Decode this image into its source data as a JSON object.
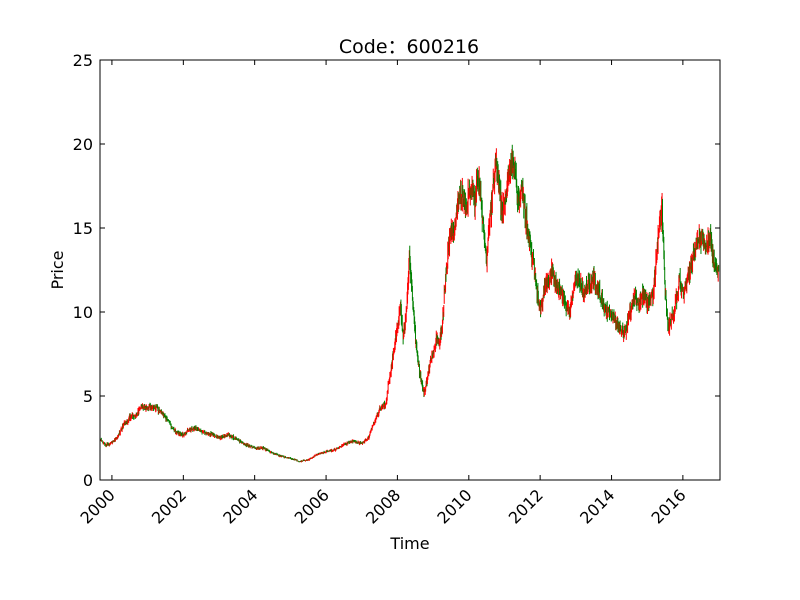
{
  "chart_data": {
    "type": "candlestick",
    "title": "Code：600216",
    "xlabel": "Time",
    "ylabel": "Price",
    "ylim": [
      0,
      25
    ],
    "xlim": [
      "1999-09-01",
      "2017-01-15"
    ],
    "yticks": [
      0,
      5,
      10,
      15,
      20,
      25
    ],
    "xticks": [
      "2000",
      "2002",
      "2004",
      "2006",
      "2008",
      "2010",
      "2012",
      "2014",
      "2016"
    ],
    "colors": {
      "up": "#ff0000",
      "down": "#008000",
      "axis": "#000000"
    },
    "series": [
      {
        "values": [
          [
            "1999-09-01",
            2.4
          ],
          [
            "1999-11-01",
            2.1
          ],
          [
            "2000-01-01",
            2.2
          ],
          [
            "2000-03-01",
            2.6
          ],
          [
            "2000-05-01",
            3.3
          ],
          [
            "2000-07-01",
            3.7
          ],
          [
            "2000-09-01",
            3.9
          ],
          [
            "2000-11-01",
            4.3
          ],
          [
            "2001-01-01",
            4.3
          ],
          [
            "2001-03-01",
            4.4
          ],
          [
            "2001-05-01",
            4.1
          ],
          [
            "2001-07-01",
            3.7
          ],
          [
            "2001-09-01",
            3.2
          ],
          [
            "2001-11-01",
            2.8
          ],
          [
            "2002-01-01",
            2.7
          ],
          [
            "2002-03-01",
            3.0
          ],
          [
            "2002-05-01",
            3.1
          ],
          [
            "2002-07-01",
            2.9
          ],
          [
            "2002-09-01",
            2.8
          ],
          [
            "2002-11-01",
            2.7
          ],
          [
            "2003-01-01",
            2.5
          ],
          [
            "2003-04-01",
            2.7
          ],
          [
            "2003-07-01",
            2.4
          ],
          [
            "2003-10-01",
            2.1
          ],
          [
            "2004-01-01",
            1.9
          ],
          [
            "2004-04-01",
            1.9
          ],
          [
            "2004-07-01",
            1.6
          ],
          [
            "2004-10-01",
            1.4
          ],
          [
            "2005-01-01",
            1.3
          ],
          [
            "2005-04-01",
            1.1
          ],
          [
            "2005-07-01",
            1.2
          ],
          [
            "2005-10-01",
            1.5
          ],
          [
            "2006-01-01",
            1.7
          ],
          [
            "2006-04-01",
            1.8
          ],
          [
            "2006-07-01",
            2.1
          ],
          [
            "2006-10-01",
            2.3
          ],
          [
            "2007-01-01",
            2.2
          ],
          [
            "2007-03-01",
            2.4
          ],
          [
            "2007-05-01",
            3.3
          ],
          [
            "2007-07-01",
            4.2
          ],
          [
            "2007-09-01",
            4.5
          ],
          [
            "2007-11-01",
            6.8
          ],
          [
            "2008-01-01",
            9.0
          ],
          [
            "2008-02-01",
            10.5
          ],
          [
            "2008-03-01",
            8.5
          ],
          [
            "2008-04-01",
            10.0
          ],
          [
            "2008-05-01",
            13.5
          ],
          [
            "2008-06-01",
            11.0
          ],
          [
            "2008-07-01",
            8.5
          ],
          [
            "2008-08-01",
            7.0
          ],
          [
            "2008-09-01",
            5.8
          ],
          [
            "2008-10-01",
            5.2
          ],
          [
            "2008-11-01",
            6.0
          ],
          [
            "2008-12-01",
            7.0
          ],
          [
            "2009-01-01",
            7.5
          ],
          [
            "2009-02-01",
            8.5
          ],
          [
            "2009-03-01",
            8.2
          ],
          [
            "2009-04-01",
            9.0
          ],
          [
            "2009-05-01",
            11.5
          ],
          [
            "2009-06-01",
            13.5
          ],
          [
            "2009-07-01",
            15.0
          ],
          [
            "2009-08-01",
            14.5
          ],
          [
            "2009-09-01",
            16.0
          ],
          [
            "2009-10-01",
            16.8
          ],
          [
            "2009-11-01",
            17.2
          ],
          [
            "2009-12-01",
            16.0
          ],
          [
            "2010-01-01",
            17.0
          ],
          [
            "2010-02-01",
            17.5
          ],
          [
            "2010-03-01",
            16.5
          ],
          [
            "2010-04-01",
            18.5
          ],
          [
            "2010-05-01",
            17.0
          ],
          [
            "2010-06-01",
            15.0
          ],
          [
            "2010-07-01",
            13.0
          ],
          [
            "2010-08-01",
            15.5
          ],
          [
            "2010-09-01",
            17.0
          ],
          [
            "2010-10-01",
            19.0
          ],
          [
            "2010-11-01",
            18.0
          ],
          [
            "2010-12-01",
            16.0
          ],
          [
            "2011-01-01",
            16.5
          ],
          [
            "2011-02-01",
            17.5
          ],
          [
            "2011-03-01",
            18.5
          ],
          [
            "2011-04-01",
            19.0
          ],
          [
            "2011-05-01",
            17.5
          ],
          [
            "2011-06-01",
            16.5
          ],
          [
            "2011-07-01",
            17.5
          ],
          [
            "2011-08-01",
            16.0
          ],
          [
            "2011-09-01",
            14.5
          ],
          [
            "2011-10-01",
            13.5
          ],
          [
            "2011-11-01",
            12.5
          ],
          [
            "2011-12-01",
            11.0
          ],
          [
            "2012-01-01",
            10.2
          ],
          [
            "2012-02-01",
            11.0
          ],
          [
            "2012-03-01",
            12.0
          ],
          [
            "2012-04-01",
            11.5
          ],
          [
            "2012-05-01",
            12.5
          ],
          [
            "2012-06-01",
            11.8
          ],
          [
            "2012-07-01",
            11.5
          ],
          [
            "2012-08-01",
            11.2
          ],
          [
            "2012-09-01",
            10.8
          ],
          [
            "2012-10-01",
            10.3
          ],
          [
            "2012-11-01",
            10.0
          ],
          [
            "2012-12-01",
            11.2
          ],
          [
            "2013-01-01",
            12.0
          ],
          [
            "2013-02-01",
            11.8
          ],
          [
            "2013-03-01",
            11.5
          ],
          [
            "2013-04-01",
            11.0
          ],
          [
            "2013-05-01",
            11.8
          ],
          [
            "2013-06-01",
            11.5
          ],
          [
            "2013-07-01",
            12.0
          ],
          [
            "2013-08-01",
            11.5
          ],
          [
            "2013-09-01",
            11.2
          ],
          [
            "2013-10-01",
            10.5
          ],
          [
            "2013-11-01",
            10.2
          ],
          [
            "2013-12-01",
            10.0
          ],
          [
            "2014-01-01",
            9.8
          ],
          [
            "2014-02-01",
            9.5
          ],
          [
            "2014-03-01",
            9.2
          ],
          [
            "2014-04-01",
            9.0
          ],
          [
            "2014-05-01",
            8.8
          ],
          [
            "2014-06-01",
            9.0
          ],
          [
            "2014-07-01",
            9.8
          ],
          [
            "2014-08-01",
            10.5
          ],
          [
            "2014-09-01",
            11.0
          ],
          [
            "2014-10-01",
            10.5
          ],
          [
            "2014-11-01",
            10.8
          ],
          [
            "2014-12-01",
            11.0
          ],
          [
            "2015-01-01",
            10.5
          ],
          [
            "2015-02-01",
            10.8
          ],
          [
            "2015-03-01",
            11.0
          ],
          [
            "2015-04-01",
            13.0
          ],
          [
            "2015-05-01",
            15.0
          ],
          [
            "2015-06-01",
            16.5
          ],
          [
            "2015-07-01",
            11.5
          ],
          [
            "2015-08-01",
            9.0
          ],
          [
            "2015-09-01",
            9.5
          ],
          [
            "2015-10-01",
            10.0
          ],
          [
            "2015-11-01",
            11.0
          ],
          [
            "2015-12-01",
            12.0
          ],
          [
            "2016-01-01",
            11.0
          ],
          [
            "2016-02-01",
            11.5
          ],
          [
            "2016-03-01",
            12.0
          ],
          [
            "2016-04-01",
            13.0
          ],
          [
            "2016-05-01",
            13.5
          ],
          [
            "2016-06-01",
            14.0
          ],
          [
            "2016-07-01",
            14.5
          ],
          [
            "2016-08-01",
            14.2
          ],
          [
            "2016-09-01",
            14.0
          ],
          [
            "2016-10-01",
            14.5
          ],
          [
            "2016-11-01",
            13.5
          ],
          [
            "2016-12-01",
            12.5
          ],
          [
            "2017-01-01",
            12.2
          ]
        ]
      }
    ]
  }
}
